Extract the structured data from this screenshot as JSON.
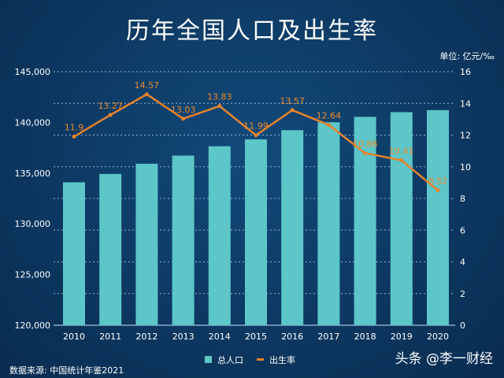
{
  "chart_data": {
    "type": "bar+line",
    "title": "历年全国人口及出生率",
    "unit_label": "单位: 亿元/‰",
    "categories": [
      "2010",
      "2011",
      "2012",
      "2013",
      "2014",
      "2015",
      "2016",
      "2017",
      "2018",
      "2019",
      "2020"
    ],
    "series": [
      {
        "name": "总人口",
        "type": "bar",
        "axis": "left",
        "color": "#5cc6c9",
        "values": [
          134091,
          134916,
          135922,
          136726,
          137646,
          138326,
          139232,
          140011,
          140541,
          141008,
          141212
        ]
      },
      {
        "name": "出生率",
        "type": "line",
        "axis": "right",
        "color": "#e8832a",
        "values": [
          11.9,
          13.27,
          14.57,
          13.03,
          13.83,
          11.99,
          13.57,
          12.64,
          10.86,
          10.41,
          8.52
        ],
        "labels": [
          "11.9",
          "13.27",
          "14.57",
          "13.03",
          "13.83",
          "11.99",
          "13.57",
          "12.64",
          "10.86",
          "10.41",
          "8.52"
        ]
      }
    ],
    "y_left": {
      "range": [
        120000,
        145000
      ],
      "ticks": [
        "120,000",
        "125,000",
        "130,000",
        "135,000",
        "140,000",
        "145,000"
      ]
    },
    "y_right": {
      "range": [
        0,
        16
      ],
      "ticks": [
        "0",
        "2",
        "4",
        "6",
        "8",
        "10",
        "12",
        "14",
        "16"
      ]
    },
    "grid": true,
    "legend": "bottom-center"
  },
  "source": "数据来源: 中国统计年鉴2021",
  "watermark": "头条 @李一财经"
}
